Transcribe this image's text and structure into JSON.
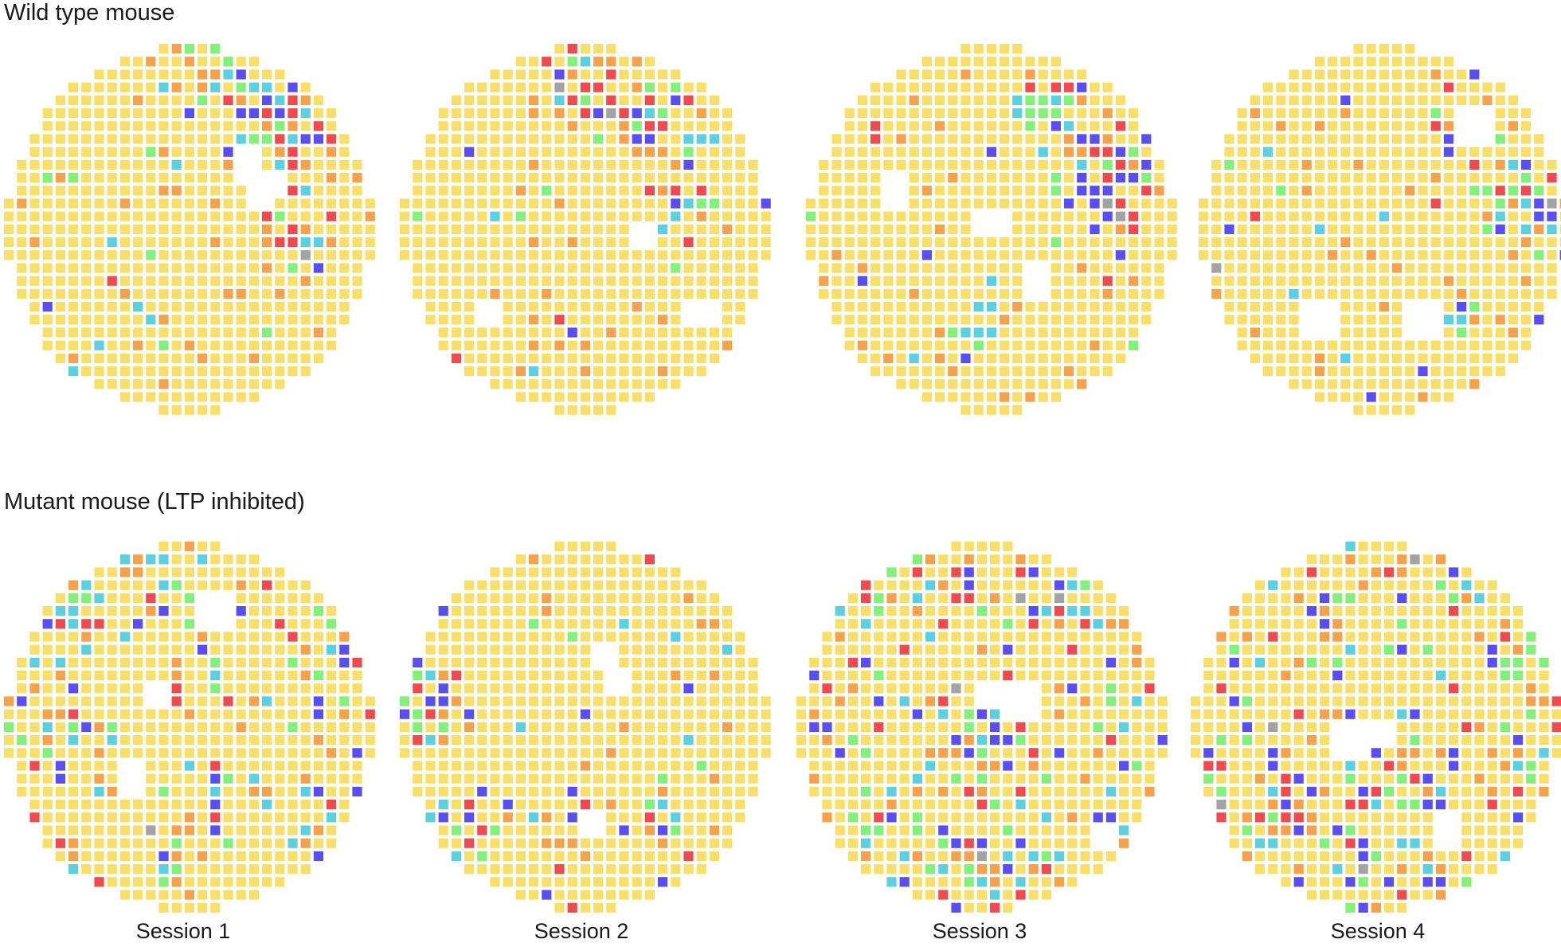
{
  "chart_data": {
    "type": "heatmap",
    "rows": [
      {
        "title": "Wild type mouse"
      },
      {
        "title": "Mutant mouse (LTP inhibited)"
      }
    ],
    "columns": [
      "Session 1",
      "Session 2",
      "Session 3",
      "Session 4"
    ],
    "colors": {
      "background_cell": "#f7df6a",
      "orange": "#f5a24a",
      "red": "#ef4a4e",
      "green": "#83f07a",
      "cyan": "#5cd0de",
      "blue": "#5b4ef0",
      "gray": "#a3a3a3"
    },
    "grid_on": false
  }
}
